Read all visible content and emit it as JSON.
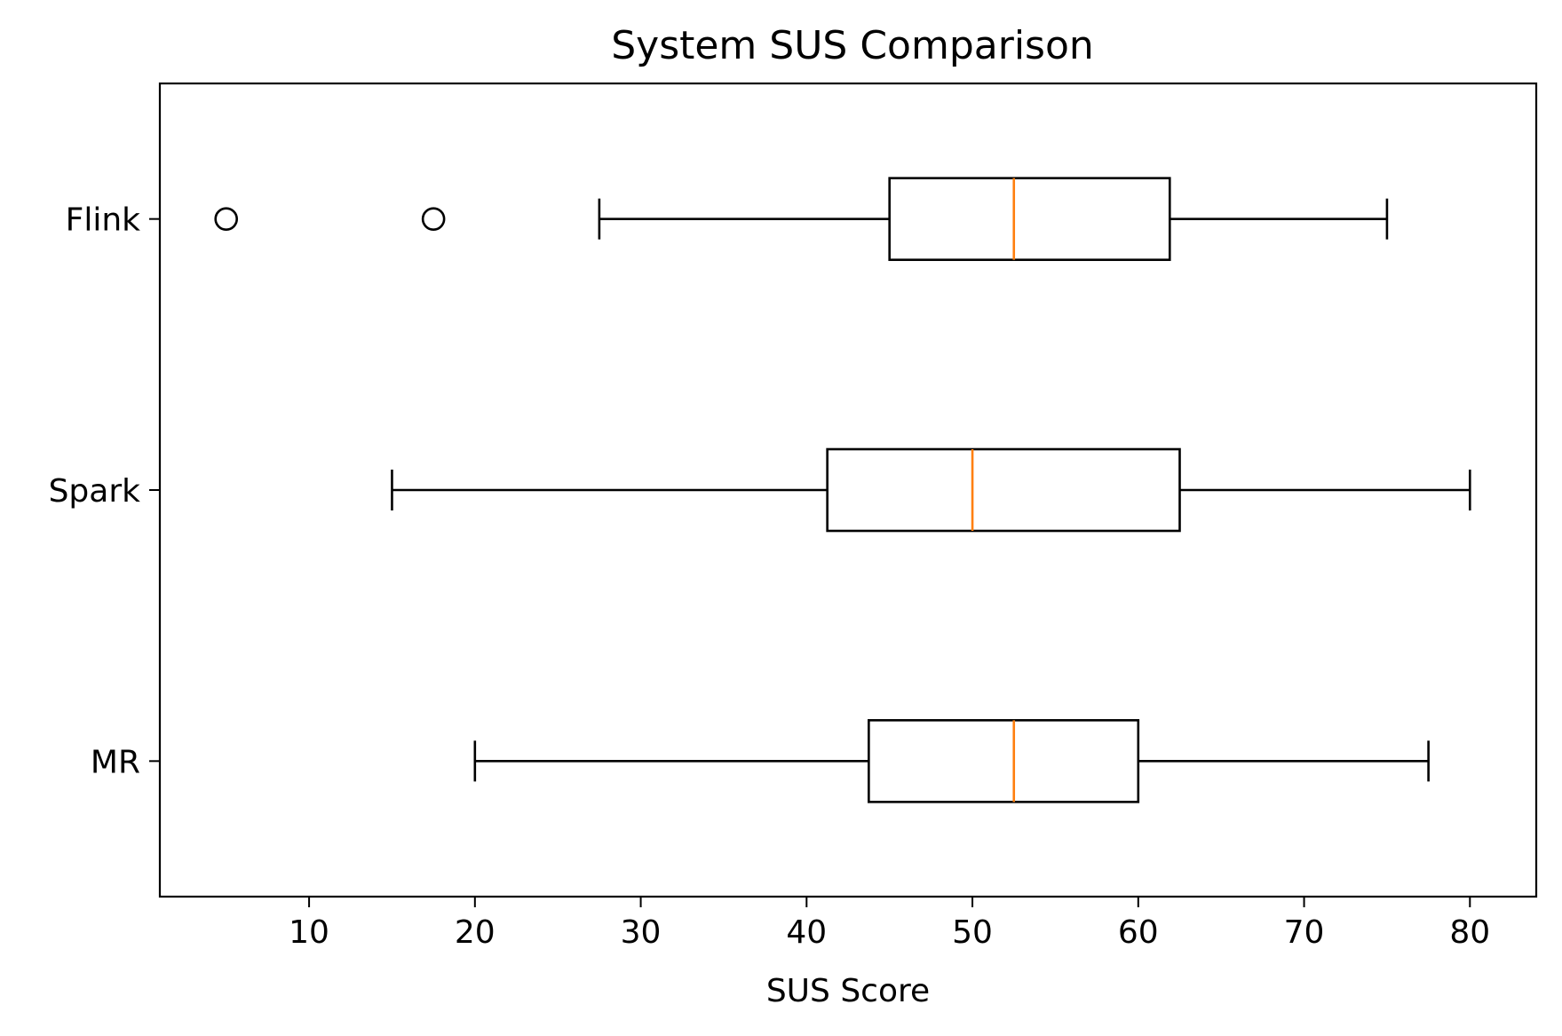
{
  "chart_data": {
    "type": "boxplot",
    "orientation": "horizontal",
    "title": "System SUS Comparison",
    "xlabel": "SUS Score",
    "ylabel": "",
    "xlim": [
      1,
      84
    ],
    "xticks": [
      10,
      20,
      30,
      40,
      50,
      60,
      70,
      80
    ],
    "categories": [
      "MR",
      "Spark",
      "Flink"
    ],
    "boxes": [
      {
        "category": "MR",
        "whisker_low": 20,
        "q1": 43.75,
        "median": 52.5,
        "q3": 60,
        "whisker_high": 77.5,
        "outliers": []
      },
      {
        "category": "Spark",
        "whisker_low": 15,
        "q1": 41.25,
        "median": 50,
        "q3": 62.5,
        "whisker_high": 80,
        "outliers": []
      },
      {
        "category": "Flink",
        "whisker_low": 27.5,
        "q1": 45,
        "median": 52.5,
        "q3": 61.9,
        "whisker_high": 75,
        "outliers": [
          5,
          17.5
        ]
      }
    ],
    "grid": false,
    "colors": {
      "box": "#000000",
      "median": "#ff7f0e",
      "outlier": "#000000"
    }
  }
}
